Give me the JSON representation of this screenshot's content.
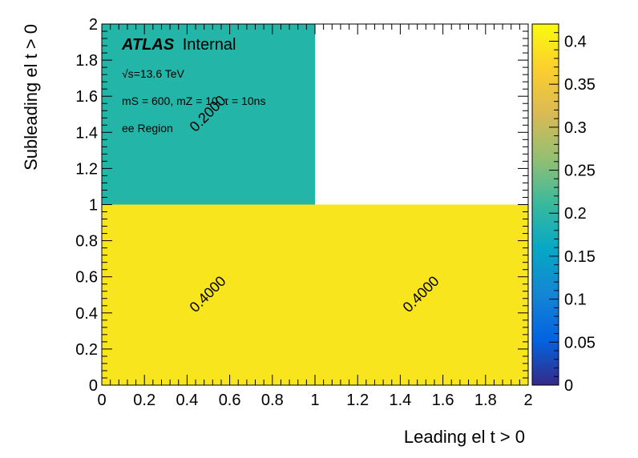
{
  "chart_data": {
    "type": "heatmap",
    "xlabel": "Leading el t > 0",
    "ylabel": "Subleading el t > 0",
    "xlim": [
      0,
      2
    ],
    "ylim": [
      0,
      2
    ],
    "x_edges": [
      0,
      1,
      2
    ],
    "y_edges": [
      0,
      1,
      2
    ],
    "x_ticks": [
      "0",
      "0.2",
      "0.4",
      "0.6",
      "0.8",
      "1",
      "1.2",
      "1.4",
      "1.6",
      "1.8",
      "2"
    ],
    "y_ticks": [
      "0",
      "0.2",
      "0.4",
      "0.6",
      "0.8",
      "1",
      "1.2",
      "1.4",
      "1.6",
      "1.8",
      "2"
    ],
    "cells": [
      {
        "x": [
          0,
          1
        ],
        "y": [
          0,
          1
        ],
        "value": 0.4,
        "label": "0.4000"
      },
      {
        "x": [
          1,
          2
        ],
        "y": [
          0,
          1
        ],
        "value": 0.4,
        "label": "0.4000"
      },
      {
        "x": [
          0,
          1
        ],
        "y": [
          1,
          2
        ],
        "value": 0.2,
        "label": "0.2000"
      }
    ],
    "zlim": [
      0,
      0.42
    ],
    "colorbar_ticks": [
      "0",
      "0.05",
      "0.1",
      "0.15",
      "0.2",
      "0.25",
      "0.3",
      "0.35",
      "0.4"
    ],
    "colormap": "parula",
    "colors": {
      "high": "#f9e51e",
      "mid": "#22b5a8",
      "low": "#352a87"
    },
    "annotations": {
      "experiment": "ATLAS",
      "status": "Internal",
      "energy_prefix": "√s",
      "energy_suffix": "=13.6 TeV",
      "model": "mS = 600, mZ = 10, τ = 10ns",
      "region": "ee Region"
    }
  }
}
